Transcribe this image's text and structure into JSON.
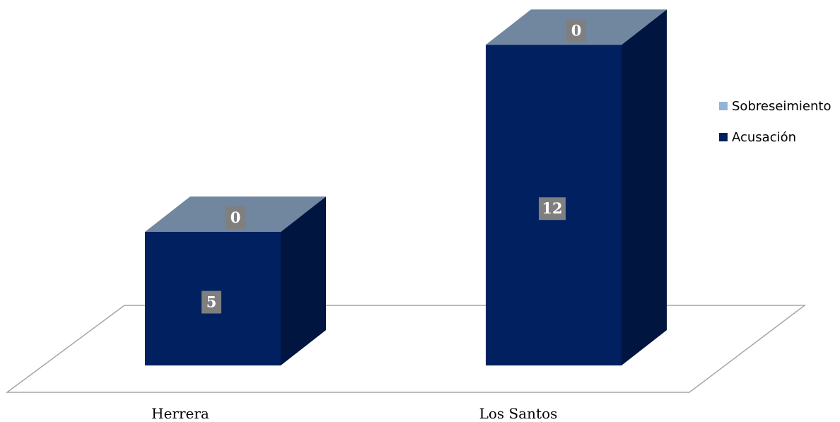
{
  "chart_data": {
    "type": "bar",
    "stacked": true,
    "three_d": true,
    "title": "",
    "xlabel": "",
    "ylabel": "",
    "categories": [
      "Herrera",
      "Los Santos"
    ],
    "series": [
      {
        "name": "Acusación",
        "values": [
          5,
          12
        ],
        "color": "#002060",
        "labels": [
          "5",
          "12"
        ]
      },
      {
        "name": "Sobreseimiento",
        "values": [
          0,
          0
        ],
        "color": "#95B3D7",
        "labels": [
          "0",
          "0"
        ]
      }
    ],
    "ylim": [
      0,
      12
    ],
    "grid": false,
    "legend": {
      "position": "right",
      "entries": [
        "Sobreseimiento",
        "Acusación"
      ]
    },
    "colors": {
      "front": "#002060",
      "side": "#001640",
      "top": "#71869F",
      "label_box": "#7F7F7F",
      "floor_stroke": "#A6A6A6",
      "legend_sobreseimiento": "#95B3D7",
      "legend_acusacion": "#002060"
    }
  }
}
